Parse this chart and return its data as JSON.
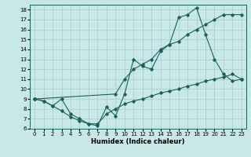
{
  "xlabel": "Humidex (Indice chaleur)",
  "bg_color": "#c8e8e8",
  "line_color": "#1a6060",
  "grid_color": "#b0d0d0",
  "ylim": [
    6,
    18.5
  ],
  "xlim": [
    -0.5,
    23.5
  ],
  "yticks": [
    6,
    7,
    8,
    9,
    10,
    11,
    12,
    13,
    14,
    15,
    16,
    17,
    18
  ],
  "xticks": [
    0,
    1,
    2,
    3,
    4,
    5,
    6,
    7,
    8,
    9,
    10,
    11,
    12,
    13,
    14,
    15,
    16,
    17,
    18,
    19,
    20,
    21,
    22,
    23
  ],
  "line1_x": [
    0,
    1,
    2,
    3,
    4,
    5,
    6,
    7,
    8,
    9,
    10,
    11,
    12,
    13,
    14,
    15,
    16,
    17,
    18,
    19,
    20,
    21,
    22,
    23
  ],
  "line1_y": [
    9.0,
    8.8,
    8.3,
    9.0,
    7.5,
    7.0,
    6.5,
    6.3,
    8.2,
    7.3,
    9.5,
    13.0,
    12.3,
    12.0,
    13.8,
    14.5,
    17.2,
    17.5,
    18.2,
    15.5,
    13.0,
    11.5,
    10.8,
    11.0
  ],
  "line2_x": [
    0,
    9,
    10,
    11,
    12,
    13,
    14,
    15,
    16,
    17,
    18,
    19,
    20,
    21,
    22,
    23
  ],
  "line2_y": [
    9.0,
    9.5,
    11.0,
    12.0,
    12.5,
    13.0,
    14.0,
    14.5,
    14.8,
    15.5,
    16.0,
    16.5,
    17.0,
    17.5,
    17.5,
    17.5
  ],
  "line3_x": [
    0,
    1,
    2,
    3,
    4,
    5,
    6,
    7,
    8,
    9,
    10,
    11,
    12,
    13,
    14,
    15,
    16,
    17,
    18,
    19,
    20,
    21,
    22,
    23
  ],
  "line3_y": [
    9.0,
    8.8,
    8.3,
    7.8,
    7.2,
    6.8,
    6.5,
    6.5,
    7.5,
    8.0,
    8.5,
    8.8,
    9.0,
    9.3,
    9.6,
    9.8,
    10.0,
    10.3,
    10.5,
    10.8,
    11.0,
    11.2,
    11.5,
    11.0
  ]
}
